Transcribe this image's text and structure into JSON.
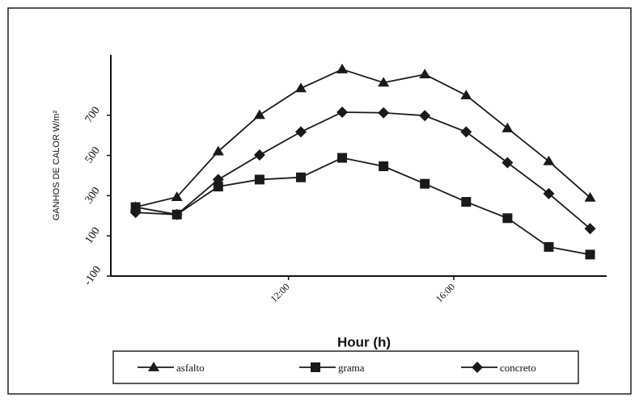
{
  "chart_data": {
    "type": "line",
    "y_label": "GANHOS DE CALOR W/m²",
    "x_label": "Hour (h)",
    "x": [
      8.3,
      9.3,
      10.3,
      11.3,
      12.3,
      13.3,
      14.3,
      15.3,
      16.3,
      17.3,
      18.3,
      19.3
    ],
    "xlim": [
      7.7,
      19.7
    ],
    "xticks": [
      {
        "value": 12,
        "label": "12:00"
      },
      {
        "value": 16,
        "label": "16:00"
      }
    ],
    "ylim": [
      -100,
      1000
    ],
    "yticks": [
      -100,
      100,
      300,
      500,
      700
    ],
    "series": [
      {
        "name": "asfalto",
        "color": "#1a1a1a",
        "marker": "triangle",
        "values": [
          243,
          293,
          520,
          701,
          834,
          928,
          862,
          903,
          799,
          635,
          471,
          290
        ]
      },
      {
        "name": "grama",
        "color": "#1a1a1a",
        "marker": "square",
        "values": [
          243,
          206,
          345,
          380,
          391,
          488,
          446,
          359,
          269,
          188,
          45,
          7
        ]
      },
      {
        "name": "concreto",
        "color": "#1a1a1a",
        "marker": "diamond",
        "values": [
          216,
          206,
          380,
          502,
          617,
          715,
          712,
          698,
          617,
          464,
          310,
          136
        ]
      }
    ]
  }
}
